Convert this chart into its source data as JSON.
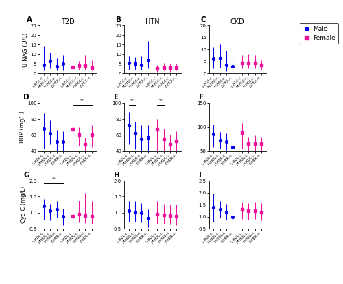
{
  "col_titles": [
    "T2D",
    "HTN",
    "CKD"
  ],
  "panel_order": [
    [
      "A",
      "B",
      "C"
    ],
    [
      "D",
      "E",
      "F"
    ],
    [
      "G",
      "H",
      "I"
    ]
  ],
  "row_ylabels": [
    "U-NAG (U/L)",
    "RBP (mg/L)",
    "Cys-C (mg/L)"
  ],
  "x_tick_labels": [
    "L-HDL-c",
    "M-HDL-c",
    "H-HDL-c",
    "E-HDL-c",
    "L-HDL-c",
    "M-HDL-c",
    "H-HDL-c",
    "E-HDL-c"
  ],
  "male_color": "#0000EE",
  "female_color": "#EE1199",
  "panels": {
    "A": {
      "male_means": [
        4.5,
        6.5,
        3.8,
        5.0
      ],
      "male_lo": [
        1.5,
        2.5,
        1.5,
        1.5
      ],
      "male_hi": [
        14.5,
        11.0,
        8.0,
        9.5
      ],
      "female_means": [
        3.5,
        4.0,
        4.0,
        3.0
      ],
      "female_lo": [
        1.5,
        2.0,
        2.0,
        1.5
      ],
      "female_hi": [
        10.5,
        6.5,
        9.5,
        7.0
      ],
      "ylim": [
        0,
        25
      ],
      "yticks": [
        0,
        5,
        10,
        15,
        20,
        25
      ],
      "sig": null
    },
    "B": {
      "male_means": [
        5.5,
        5.0,
        4.5,
        7.0
      ],
      "male_lo": [
        2.0,
        2.0,
        2.0,
        2.5
      ],
      "male_hi": [
        9.0,
        8.5,
        9.0,
        17.0
      ],
      "female_means": [
        2.5,
        3.0,
        3.0,
        3.0
      ],
      "female_lo": [
        1.0,
        1.5,
        1.0,
        1.5
      ],
      "female_hi": [
        4.5,
        5.5,
        5.0,
        5.0
      ],
      "ylim": [
        0,
        25
      ],
      "yticks": [
        0,
        5,
        10,
        15,
        20,
        25
      ],
      "sig": null
    },
    "C": {
      "male_means": [
        6.0,
        6.5,
        3.5,
        3.0
      ],
      "male_lo": [
        2.0,
        2.5,
        1.0,
        1.0
      ],
      "male_hi": [
        11.0,
        12.0,
        9.5,
        6.0
      ],
      "female_means": [
        4.5,
        4.5,
        4.5,
        3.5
      ],
      "female_lo": [
        2.0,
        2.0,
        2.0,
        1.5
      ],
      "female_hi": [
        7.5,
        8.0,
        7.5,
        5.5
      ],
      "ylim": [
        0,
        20
      ],
      "yticks": [
        0,
        5,
        10,
        15,
        20
      ],
      "sig": null
    },
    "D": {
      "male_means": [
        68,
        62,
        52,
        52
      ],
      "male_lo": [
        43,
        48,
        38,
        40
      ],
      "male_hi": [
        88,
        78,
        66,
        65
      ],
      "female_means": [
        67,
        60,
        48,
        60
      ],
      "female_lo": [
        42,
        47,
        36,
        45
      ],
      "female_hi": [
        82,
        70,
        57,
        72
      ],
      "ylim": [
        40,
        100
      ],
      "yticks": [
        40,
        60,
        80,
        100
      ],
      "sig": [
        {
          "xi": 4,
          "xj": 7,
          "female": true
        }
      ]
    },
    "E": {
      "male_means": [
        72,
        62,
        55,
        57
      ],
      "male_lo": [
        48,
        42,
        35,
        40
      ],
      "male_hi": [
        89,
        77,
        72,
        72
      ],
      "female_means": [
        67,
        55,
        48,
        53
      ],
      "female_lo": [
        38,
        32,
        30,
        35
      ],
      "female_hi": [
        80,
        68,
        60,
        65
      ],
      "ylim": [
        40,
        100
      ],
      "yticks": [
        40,
        60,
        80,
        100
      ],
      "sig": [
        {
          "xi": 0,
          "xj": 1,
          "female": false
        },
        {
          "xi": 4,
          "xj": 5,
          "female": false
        }
      ]
    },
    "F": {
      "male_means": [
        85,
        72,
        70,
        58
      ],
      "male_lo": [
        58,
        55,
        52,
        42
      ],
      "male_hi": [
        105,
        90,
        87,
        70
      ],
      "female_means": [
        88,
        65,
        65,
        65
      ],
      "female_lo": [
        55,
        45,
        48,
        45
      ],
      "female_hi": [
        108,
        80,
        82,
        80
      ],
      "ylim": [
        50,
        150
      ],
      "yticks": [
        50,
        100,
        150
      ],
      "sig": null
    },
    "G": {
      "male_means": [
        1.2,
        1.05,
        1.1,
        0.88
      ],
      "male_lo": [
        0.78,
        0.75,
        0.85,
        0.6
      ],
      "male_hi": [
        1.42,
        1.28,
        1.35,
        1.12
      ],
      "female_means": [
        0.88,
        0.95,
        0.9,
        0.88
      ],
      "female_lo": [
        0.68,
        0.7,
        0.68,
        0.65
      ],
      "female_hi": [
        1.6,
        1.38,
        1.62,
        1.35
      ],
      "ylim": [
        0.5,
        2.0
      ],
      "yticks": [
        0.5,
        1.0,
        1.5,
        2.0
      ],
      "sig": [
        {
          "xi": 0,
          "xj": 3,
          "female": false
        }
      ]
    },
    "H": {
      "male_means": [
        1.05,
        1.02,
        1.0,
        0.82
      ],
      "male_lo": [
        0.72,
        0.72,
        0.7,
        0.55
      ],
      "male_hi": [
        1.35,
        1.35,
        1.3,
        1.1
      ],
      "female_means": [
        0.95,
        0.92,
        0.9,
        0.88
      ],
      "female_lo": [
        0.65,
        0.65,
        0.62,
        0.6
      ],
      "female_hi": [
        1.35,
        1.28,
        1.25,
        1.25
      ],
      "ylim": [
        0.5,
        2.0
      ],
      "yticks": [
        0.5,
        1.0,
        1.5,
        2.0
      ],
      "sig": null
    },
    "I": {
      "male_means": [
        1.4,
        1.3,
        1.2,
        0.98
      ],
      "male_lo": [
        0.8,
        0.95,
        0.88,
        0.72
      ],
      "male_hi": [
        1.95,
        1.65,
        1.52,
        1.3
      ],
      "female_means": [
        1.3,
        1.25,
        1.25,
        1.18
      ],
      "female_lo": [
        0.9,
        0.88,
        0.9,
        0.85
      ],
      "female_hi": [
        1.6,
        1.55,
        1.62,
        1.55
      ],
      "ylim": [
        0.5,
        2.5
      ],
      "yticks": [
        0.5,
        1.0,
        1.5,
        2.0,
        2.5
      ],
      "sig": null
    }
  }
}
